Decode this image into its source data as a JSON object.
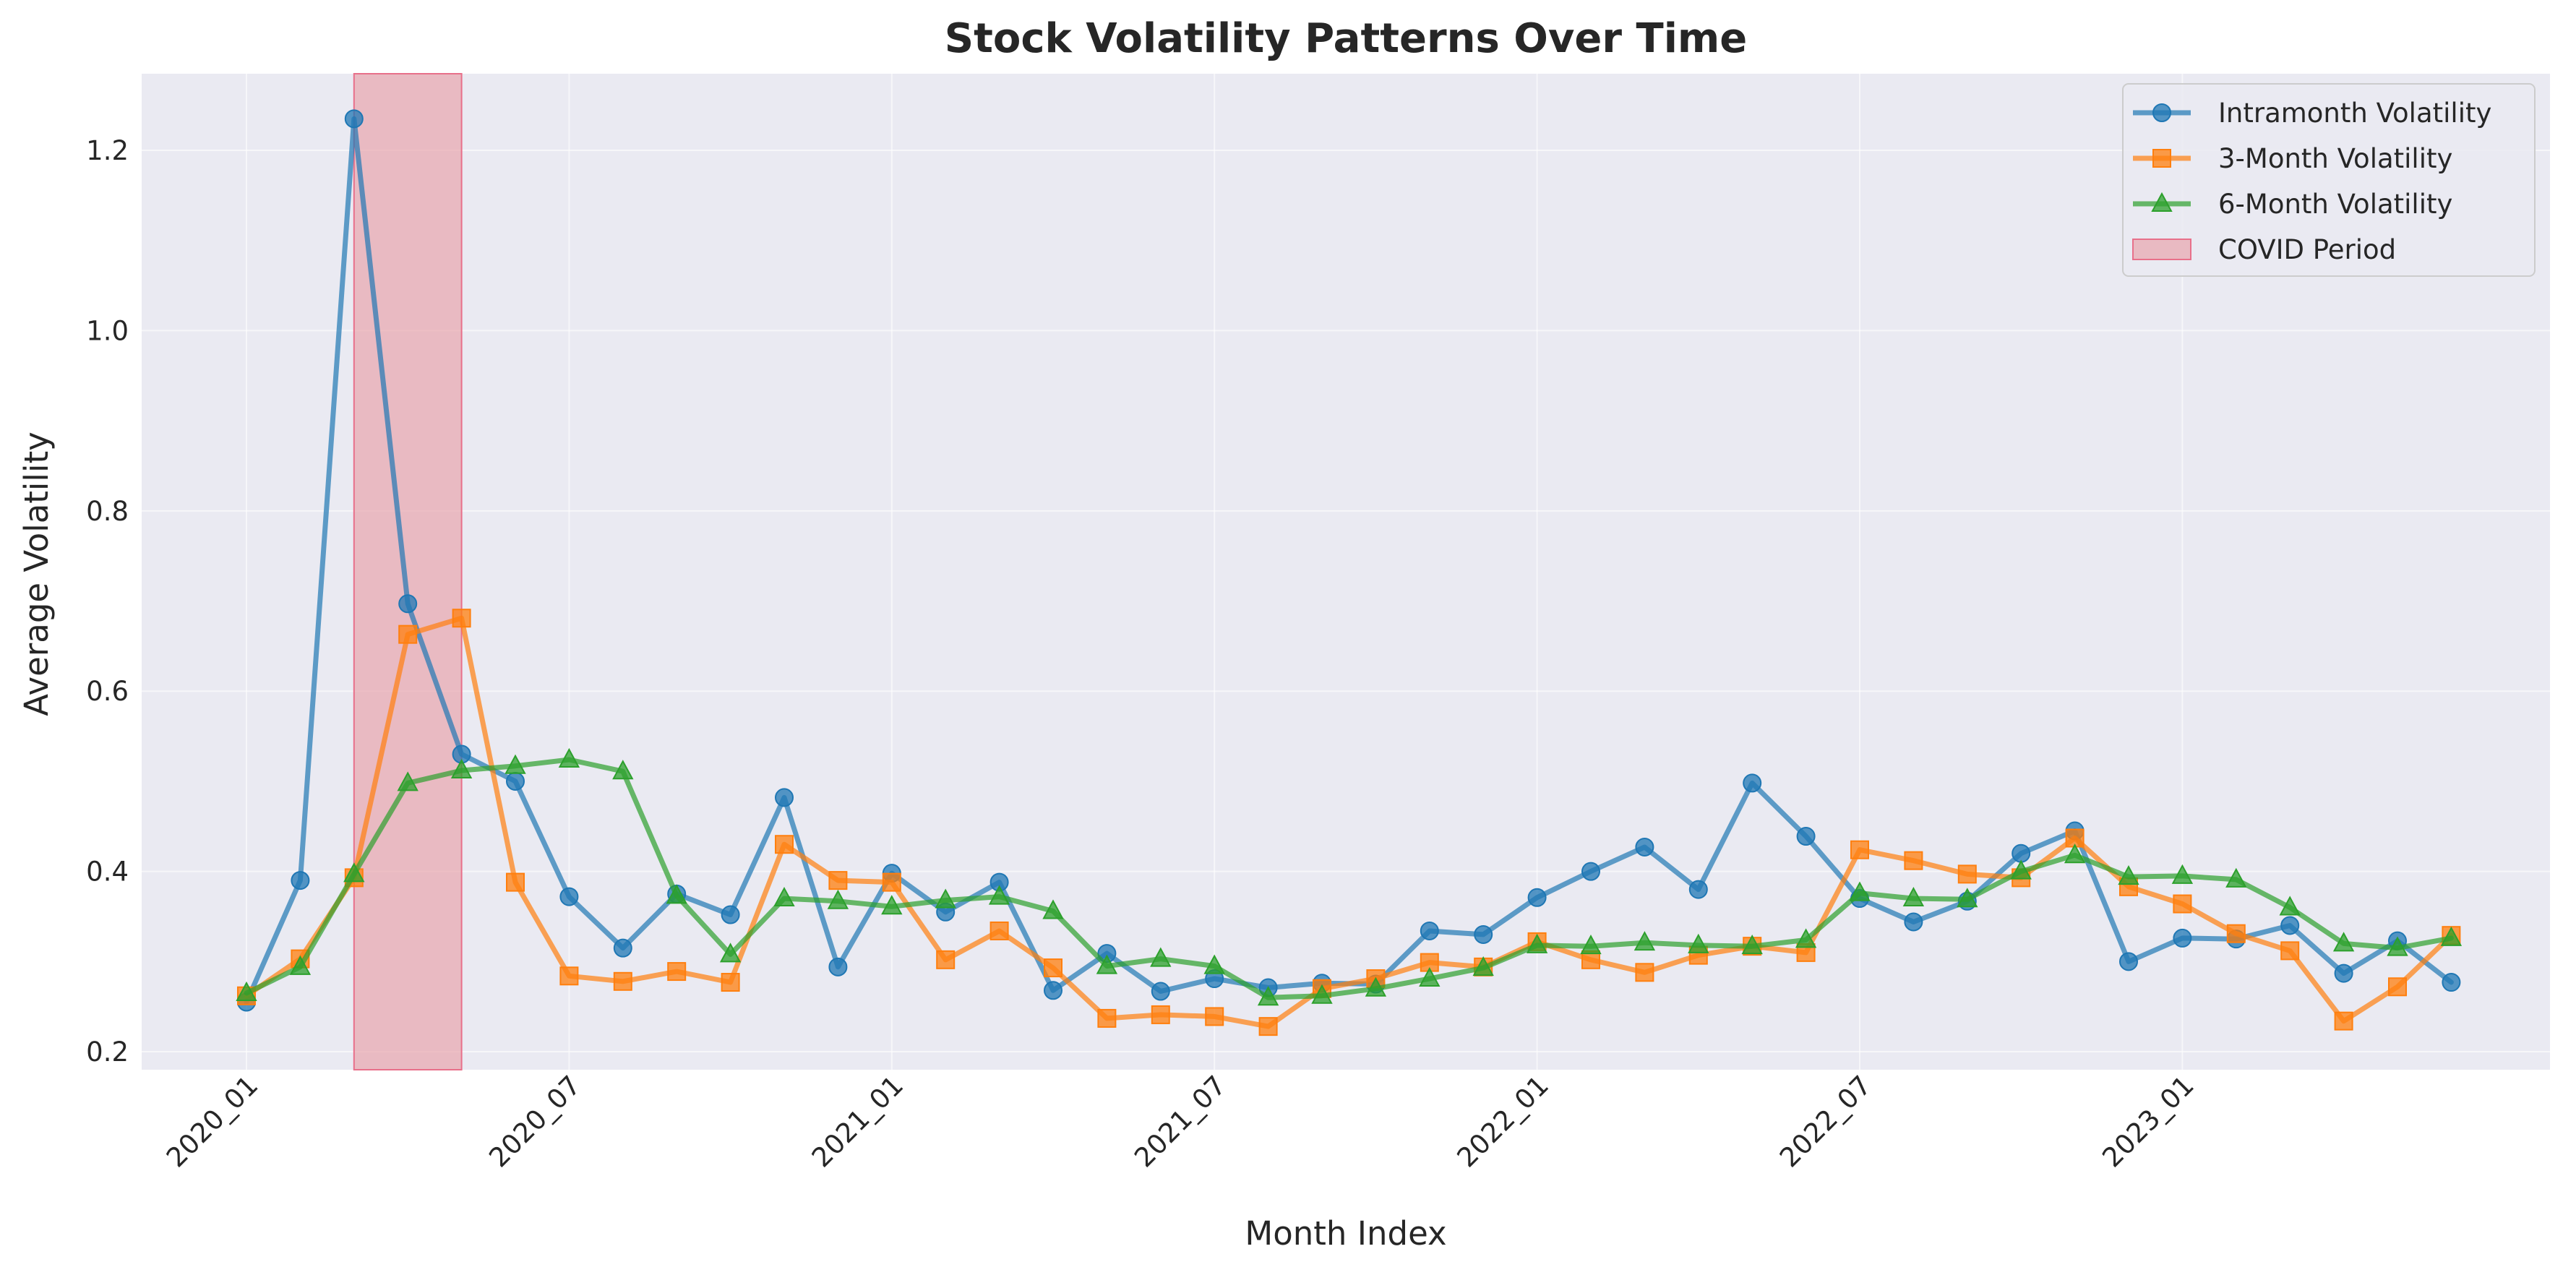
{
  "chart_data": {
    "type": "line",
    "title": "Stock Volatility Patterns Over Time",
    "xlabel": "Month Index",
    "ylabel": "Average Volatility",
    "ylim": [
      0.18,
      1.285
    ],
    "yticks": [
      0.2,
      0.4,
      0.6,
      0.8,
      1.0,
      1.2
    ],
    "ytick_labels": [
      "0.2",
      "0.4",
      "0.6",
      "0.8",
      "1.0",
      "1.2"
    ],
    "xticks": [
      "2020_01",
      "2020_07",
      "2021_01",
      "2021_07",
      "2022_01",
      "2022_07",
      "2023_01"
    ],
    "x": [
      "2020_01",
      "2020_02",
      "2020_03",
      "2020_04",
      "2020_05",
      "2020_06",
      "2020_07",
      "2020_08",
      "2020_09",
      "2020_10",
      "2020_11",
      "2020_12",
      "2021_01",
      "2021_02",
      "2021_03",
      "2021_04",
      "2021_05",
      "2021_06",
      "2021_07",
      "2021_08",
      "2021_09",
      "2021_10",
      "2021_11",
      "2021_12",
      "2022_01",
      "2022_02",
      "2022_03",
      "2022_04",
      "2022_05",
      "2022_06",
      "2022_07",
      "2022_08",
      "2022_09",
      "2022_10",
      "2022_11",
      "2022_12",
      "2023_01",
      "2023_02",
      "2023_03",
      "2023_04",
      "2023_05",
      "2023_06"
    ],
    "grid": true,
    "legend_position": "top-right",
    "shaded_region": {
      "name": "COVID Period",
      "x_start": "2020_03",
      "x_end": "2020_05",
      "color": "#e8a0a8"
    },
    "series": [
      {
        "name": "Intramonth Volatility",
        "color": "#1f77b4",
        "marker": "circle",
        "values": [
          0.255,
          0.39,
          1.235,
          0.697,
          0.53,
          0.5,
          0.372,
          0.315,
          0.375,
          0.352,
          0.482,
          0.294,
          0.398,
          0.355,
          0.388,
          0.268,
          0.309,
          0.267,
          0.281,
          0.271,
          0.276,
          0.275,
          0.334,
          0.33,
          0.371,
          0.4,
          0.427,
          0.38,
          0.498,
          0.439,
          0.37,
          0.344,
          0.367,
          0.42,
          0.445,
          0.3,
          0.326,
          0.325,
          0.34,
          0.287,
          0.323,
          0.277
        ]
      },
      {
        "name": "3-Month Volatility",
        "color": "#ff7f0e",
        "marker": "square",
        "values": [
          0.262,
          0.303,
          0.393,
          0.663,
          0.681,
          0.388,
          0.284,
          0.278,
          0.289,
          0.277,
          0.43,
          0.39,
          0.388,
          0.302,
          0.334,
          0.293,
          0.237,
          0.241,
          0.239,
          0.228,
          0.27,
          0.281,
          0.299,
          0.294,
          0.322,
          0.302,
          0.288,
          0.307,
          0.317,
          0.31,
          0.424,
          0.412,
          0.397,
          0.393,
          0.437,
          0.383,
          0.364,
          0.331,
          0.312,
          0.234,
          0.272,
          0.329
        ]
      },
      {
        "name": "6-Month Volatility",
        "color": "#2ca02c",
        "marker": "triangle",
        "values": [
          0.265,
          0.294,
          0.397,
          0.498,
          0.512,
          0.517,
          0.524,
          0.511,
          0.373,
          0.308,
          0.37,
          0.367,
          0.361,
          0.368,
          0.372,
          0.356,
          0.295,
          0.303,
          0.295,
          0.26,
          0.262,
          0.27,
          0.281,
          0.293,
          0.318,
          0.317,
          0.321,
          0.318,
          0.317,
          0.324,
          0.376,
          0.37,
          0.369,
          0.4,
          0.418,
          0.394,
          0.395,
          0.391,
          0.36,
          0.32,
          0.315,
          0.326
        ]
      }
    ]
  }
}
